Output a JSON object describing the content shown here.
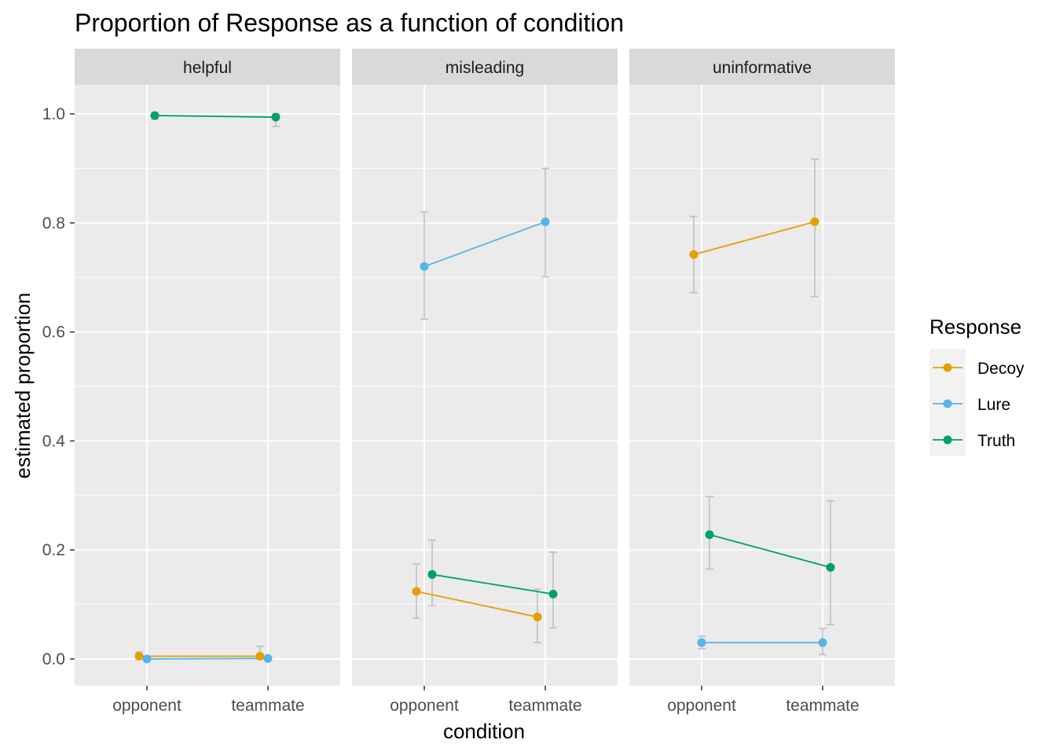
{
  "chart_data": {
    "type": "line",
    "title": "Proportion of Response as a function of condition",
    "xlabel": "condition",
    "ylabel": "estimated proportion",
    "ylim": [
      -0.05,
      1.1
    ],
    "yticks": [
      0.0,
      0.2,
      0.4,
      0.6,
      0.8,
      1.0
    ],
    "ytick_labels": [
      "0.0",
      "0.2",
      "0.4",
      "0.6",
      "0.8",
      "1.0"
    ],
    "categories": [
      "opponent",
      "teammate"
    ],
    "grid": true,
    "legend": {
      "title": "Response",
      "position": "right"
    },
    "facets": [
      {
        "label": "helpful",
        "series": [
          {
            "name": "Decoy",
            "values": [
              0.005,
              0.005
            ],
            "lower": [
              0.0,
              0.0
            ],
            "upper": [
              0.013,
              0.023
            ]
          },
          {
            "name": "Lure",
            "values": [
              0.0,
              0.001
            ],
            "lower": [
              0.0,
              0.0
            ],
            "upper": [
              0.0,
              0.002
            ]
          },
          {
            "name": "Truth",
            "values": [
              0.997,
              0.994
            ],
            "lower": [
              0.99,
              0.977
            ],
            "upper": [
              1.0,
              1.0
            ]
          }
        ]
      },
      {
        "label": "misleading",
        "series": [
          {
            "name": "Decoy",
            "values": [
              0.124,
              0.077
            ],
            "lower": [
              0.075,
              0.03
            ],
            "upper": [
              0.174,
              0.128
            ]
          },
          {
            "name": "Lure",
            "values": [
              0.72,
              0.802
            ],
            "lower": [
              0.623,
              0.701
            ],
            "upper": [
              0.82,
              0.9
            ]
          },
          {
            "name": "Truth",
            "values": [
              0.155,
              0.119
            ],
            "lower": [
              0.098,
              0.057
            ],
            "upper": [
              0.218,
              0.196
            ]
          }
        ]
      },
      {
        "label": "uninformative",
        "series": [
          {
            "name": "Decoy",
            "values": [
              0.742,
              0.802
            ],
            "lower": [
              0.672,
              0.665
            ],
            "upper": [
              0.812,
              0.917
            ]
          },
          {
            "name": "Lure",
            "values": [
              0.03,
              0.03
            ],
            "lower": [
              0.019,
              0.008
            ],
            "upper": [
              0.042,
              0.056
            ]
          },
          {
            "name": "Truth",
            "values": [
              0.228,
              0.168
            ],
            "lower": [
              0.165,
              0.063
            ],
            "upper": [
              0.298,
              0.29
            ]
          }
        ]
      }
    ],
    "colors": {
      "Decoy": "#E69F00",
      "Lure": "#56B4E9",
      "Truth": "#009E73"
    },
    "errorbar_color": "#bfbfbf",
    "panel_background": "#EBEBEB",
    "strip_background": "#D9D9D9"
  }
}
